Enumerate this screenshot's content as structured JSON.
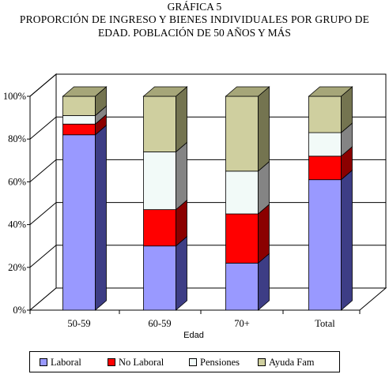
{
  "titles": {
    "line1": "GRÁFICA 5",
    "line2": "PROPORCIÓN DE INGRESO Y BIENES INDIVIDUALES POR GRUPO DE",
    "line3": "EDAD. POBLACIÓN DE 50 AÑOS Y MÁS"
  },
  "chart_data": {
    "type": "bar",
    "stacked": true,
    "percent": true,
    "three_d": true,
    "title": "GRÁFICA 5 PROPORCIÓN DE INGRESO Y BIENES INDIVIDUALES POR GRUPO DE EDAD. POBLACIÓN DE 50 AÑOS Y MÁS",
    "xlabel": "Edad",
    "ylabel": "",
    "categories": [
      "50-59",
      "60-59",
      "70+",
      "Total"
    ],
    "ylim": [
      0,
      100
    ],
    "yticks": [
      "0%",
      "20%",
      "40%",
      "60%",
      "80%",
      "100%"
    ],
    "grid": true,
    "legend_position": "bottom",
    "series": [
      {
        "name": "Laboral",
        "color": "#9999ff",
        "side_color": "#3d3d85",
        "top_color": "#7a7acc",
        "values": [
          82,
          30,
          22,
          61
        ]
      },
      {
        "name": "No Laboral",
        "color": "#ff0000",
        "side_color": "#8b0000",
        "top_color": "#cc0000",
        "values": [
          5,
          17,
          23,
          11
        ]
      },
      {
        "name": "Pensiones",
        "color": "#f2faf8",
        "side_color": "#848484",
        "top_color": "#bcbcbc",
        "values": [
          4,
          27,
          20,
          11
        ]
      },
      {
        "name": "Ayuda Fam",
        "color": "#cfcf9f",
        "side_color": "#747450",
        "top_color": "#a6a679",
        "values": [
          9,
          26,
          35,
          17
        ]
      }
    ]
  }
}
